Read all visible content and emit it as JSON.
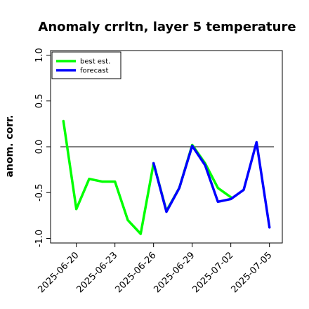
{
  "chart_data": {
    "type": "line",
    "title": "Anomaly crrltn, layer 5 temperature",
    "ylabel": "anom. corr.",
    "xlabel": "",
    "ylim": [
      -1.05,
      1.05
    ],
    "y_ticks": [
      "-1.0",
      "-0.5",
      "0.0",
      "0.5",
      "1.0"
    ],
    "y_tick_values": [
      -1.0,
      -0.5,
      0.0,
      0.5,
      1.0
    ],
    "reference_line": 0.0,
    "x_tick_labels": [
      {
        "date": "2025-06-20",
        "label": "2025-06-20",
        "color": "#000000"
      },
      {
        "date": "2025-06-23",
        "label": "2025-06-23",
        "color": "#000000"
      },
      {
        "date": "2025-06-26",
        "label": "2025-06-26",
        "color": "#228B22"
      },
      {
        "date": "2025-06-29",
        "label": "2025-06-29",
        "color": "#000000"
      },
      {
        "date": "2025-07-02",
        "label": "2025-07-02",
        "color": "#000000"
      },
      {
        "date": "2025-07-05",
        "label": "2025-07-05",
        "color": "#000000"
      }
    ],
    "xlim": [
      "2025-06-18",
      "2025-07-06"
    ],
    "legend": {
      "position": "top-left",
      "entries": [
        {
          "name": "best est.",
          "color": "#00ff00"
        },
        {
          "name": "forecast",
          "color": "#0000ff"
        }
      ]
    },
    "series": [
      {
        "name": "best est.",
        "color": "#00ff00",
        "points": [
          {
            "x": "2025-06-19",
            "y": 0.28
          },
          {
            "x": "2025-06-20",
            "y": -0.68
          },
          {
            "x": "2025-06-21",
            "y": -0.35
          },
          {
            "x": "2025-06-22",
            "y": -0.38
          },
          {
            "x": "2025-06-23",
            "y": -0.38
          },
          {
            "x": "2025-06-24",
            "y": -0.8
          },
          {
            "x": "2025-06-25",
            "y": -0.95
          },
          {
            "x": "2025-06-26",
            "y": -0.18
          },
          {
            "x": "2025-06-27",
            "y": -0.7
          },
          {
            "x": "2025-06-28",
            "y": -0.45
          },
          {
            "x": "2025-06-29",
            "y": 0.02
          },
          {
            "x": "2025-06-30",
            "y": -0.18
          },
          {
            "x": "2025-07-01",
            "y": -0.45
          },
          {
            "x": "2025-07-02",
            "y": -0.55
          }
        ]
      },
      {
        "name": "forecast",
        "color": "#0000ff",
        "points": [
          {
            "x": "2025-06-26",
            "y": -0.18
          },
          {
            "x": "2025-06-27",
            "y": -0.71
          },
          {
            "x": "2025-06-28",
            "y": -0.45
          },
          {
            "x": "2025-06-29",
            "y": 0.01
          },
          {
            "x": "2025-06-30",
            "y": -0.2
          },
          {
            "x": "2025-07-01",
            "y": -0.6
          },
          {
            "x": "2025-07-02",
            "y": -0.57
          },
          {
            "x": "2025-07-03",
            "y": -0.47
          },
          {
            "x": "2025-07-04",
            "y": 0.05
          },
          {
            "x": "2025-07-05",
            "y": -0.88
          }
        ]
      }
    ]
  }
}
